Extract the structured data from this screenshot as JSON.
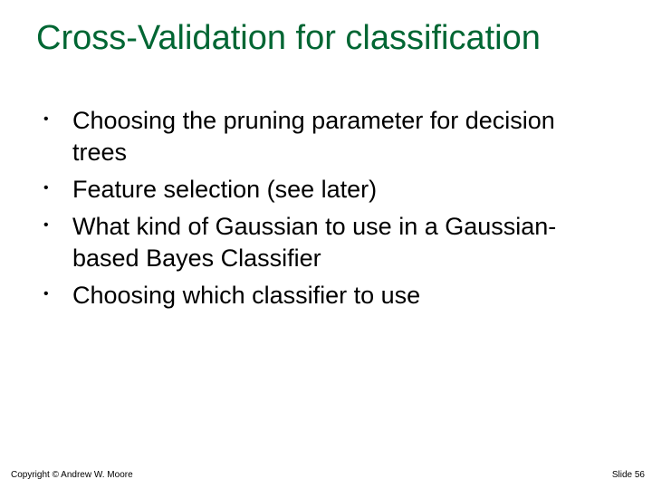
{
  "slide": {
    "title": "Cross-Validation for classification",
    "title_color": "#006633",
    "title_fontsize": 38,
    "bullets": [
      "Choosing the pruning parameter for decision trees",
      "Feature selection (see later)",
      "What kind of Gaussian to use in a Gaussian-based Bayes Classifier",
      "Choosing which classifier to use"
    ],
    "bullet_fontsize": 27,
    "bullet_color": "#000000",
    "background_color": "#ffffff",
    "footer": {
      "left": "Copyright © Andrew W. Moore",
      "right": "Slide 56",
      "fontsize": 10
    }
  }
}
